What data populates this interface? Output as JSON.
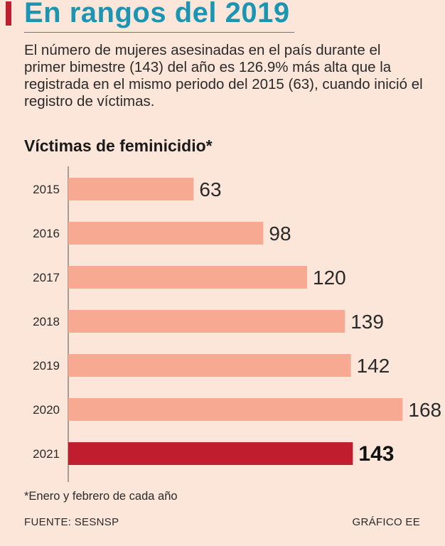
{
  "headline": "En rangos del 2019",
  "intro": "El número de mujeres asesinadas en el país durante el primer bimestre (143) del año es 126.9% más alta que la registrada en el mismo periodo del 2015 (63), cuando inició el registro de víctimas.",
  "footnote": "*Enero y febrero de cada año",
  "source": "FUENTE: SESNSP",
  "credit": "GRÁFICO EE",
  "colors": {
    "headline": "#1a96b4",
    "accent": "#c01e2e",
    "bar": "#f7aa91",
    "bar_highlight": "#c01e2e",
    "background": "#fbe6d9"
  },
  "chart_data": {
    "type": "bar",
    "orientation": "horizontal",
    "title": "Víctimas de feminicidio*",
    "categories": [
      "2015",
      "2016",
      "2017",
      "2018",
      "2019",
      "2020",
      "2021"
    ],
    "values": [
      63,
      98,
      120,
      139,
      142,
      168,
      143
    ],
    "highlight": "2021",
    "xlim": [
      0,
      175
    ],
    "xlabel": "",
    "ylabel": "",
    "grid": false
  }
}
